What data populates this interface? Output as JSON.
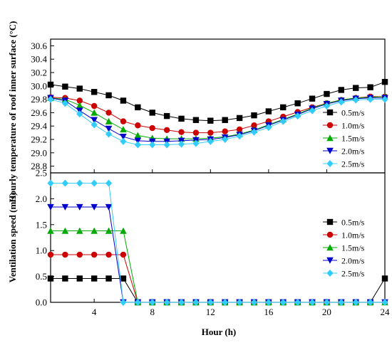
{
  "chart_data": [
    {
      "type": "line",
      "ylabel": "Hourly temperature of roof inner surface (°C)",
      "xlim": [
        1,
        24
      ],
      "ylim": [
        28.7,
        30.7
      ],
      "x_ticks": [
        4,
        8,
        12,
        16,
        20,
        24
      ],
      "y_ticks": [
        "28.8",
        "29.0",
        "29.2",
        "29.4",
        "29.6",
        "29.8",
        "30.0",
        "30.2",
        "30.4",
        "30.6"
      ],
      "legend_position": "right",
      "x": [
        1,
        2,
        3,
        4,
        5,
        6,
        7,
        8,
        9,
        10,
        11,
        12,
        13,
        14,
        15,
        16,
        17,
        18,
        19,
        20,
        21,
        22,
        23,
        24
      ],
      "series": [
        {
          "name": "0.5m/s",
          "color": "#000000",
          "marker": "square",
          "values": [
            30.02,
            29.99,
            29.96,
            29.91,
            29.86,
            29.78,
            29.68,
            29.6,
            29.55,
            29.51,
            29.49,
            29.48,
            29.49,
            29.52,
            29.56,
            29.62,
            29.68,
            29.74,
            29.81,
            29.88,
            29.94,
            29.97,
            29.98,
            30.06
          ]
        },
        {
          "name": "1.0m/s",
          "color": "#cc0000",
          "marker": "circle",
          "values": [
            29.83,
            29.82,
            29.78,
            29.7,
            29.6,
            29.47,
            29.41,
            29.37,
            29.34,
            29.31,
            29.3,
            29.3,
            29.32,
            29.35,
            29.41,
            29.47,
            29.54,
            29.61,
            29.68,
            29.74,
            29.79,
            29.82,
            29.84,
            29.84
          ]
        },
        {
          "name": "1.5m/s",
          "color": "#00aa00",
          "marker": "triangle-up",
          "values": [
            29.82,
            29.8,
            29.71,
            29.6,
            29.47,
            29.35,
            29.26,
            29.22,
            29.21,
            29.21,
            29.21,
            29.22,
            29.24,
            29.28,
            29.34,
            29.42,
            29.5,
            29.58,
            29.67,
            29.74,
            29.79,
            29.82,
            29.83,
            29.84
          ]
        },
        {
          "name": "2.0m/s",
          "color": "#0000cc",
          "marker": "triangle-down",
          "values": [
            29.82,
            29.78,
            29.63,
            29.49,
            29.36,
            29.24,
            29.18,
            29.17,
            29.17,
            29.18,
            29.19,
            29.2,
            29.23,
            29.27,
            29.33,
            29.41,
            29.49,
            29.57,
            29.66,
            29.73,
            29.78,
            29.81,
            29.82,
            29.82
          ]
        },
        {
          "name": "2.5m/s",
          "color": "#33ccff",
          "marker": "diamond",
          "values": [
            29.8,
            29.74,
            29.58,
            29.42,
            29.28,
            29.17,
            29.12,
            29.12,
            29.12,
            29.13,
            29.14,
            29.17,
            29.2,
            29.25,
            29.31,
            29.38,
            29.47,
            29.55,
            29.63,
            29.7,
            29.76,
            29.79,
            29.8,
            29.8
          ]
        }
      ]
    },
    {
      "type": "line",
      "xlabel": "Hour (h)",
      "ylabel": "Ventilation speed (m/s)",
      "xlim": [
        1,
        24
      ],
      "ylim": [
        0,
        2.5
      ],
      "x_ticks": [
        4,
        8,
        12,
        16,
        20,
        24
      ],
      "y_ticks": [
        "0.0",
        "0.5",
        "1.0",
        "1.5",
        "2.0",
        "2.5"
      ],
      "legend_position": "right",
      "x": [
        1,
        2,
        3,
        4,
        5,
        6,
        7,
        8,
        9,
        10,
        11,
        12,
        13,
        14,
        15,
        16,
        17,
        18,
        19,
        20,
        21,
        22,
        23,
        24
      ],
      "series": [
        {
          "name": "0.5m/s",
          "color": "#000000",
          "marker": "square",
          "values": [
            0.46,
            0.46,
            0.46,
            0.46,
            0.46,
            0.46,
            0,
            0,
            0,
            0,
            0,
            0,
            0,
            0,
            0,
            0,
            0,
            0,
            0,
            0,
            0,
            0,
            0,
            0.46
          ]
        },
        {
          "name": "1.0m/s",
          "color": "#cc0000",
          "marker": "circle",
          "values": [
            0.92,
            0.92,
            0.92,
            0.92,
            0.92,
            0.92,
            0,
            0,
            0,
            0,
            0,
            0,
            0,
            0,
            0,
            0,
            0,
            0,
            0,
            0,
            0,
            0,
            0,
            0
          ]
        },
        {
          "name": "1.5m/s",
          "color": "#00aa00",
          "marker": "triangle-up",
          "values": [
            1.38,
            1.38,
            1.38,
            1.38,
            1.38,
            1.38,
            0,
            0,
            0,
            0,
            0,
            0,
            0,
            0,
            0,
            0,
            0,
            0,
            0,
            0,
            0,
            0,
            0,
            0
          ]
        },
        {
          "name": "2.0m/s",
          "color": "#0000cc",
          "marker": "triangle-down",
          "values": [
            1.84,
            1.84,
            1.84,
            1.84,
            1.84,
            0,
            0,
            0,
            0,
            0,
            0,
            0,
            0,
            0,
            0,
            0,
            0,
            0,
            0,
            0,
            0,
            0,
            0,
            0
          ]
        },
        {
          "name": "2.5m/s",
          "color": "#33ccff",
          "marker": "diamond",
          "values": [
            2.3,
            2.3,
            2.3,
            2.3,
            2.3,
            0,
            0,
            0,
            0,
            0,
            0,
            0,
            0,
            0,
            0,
            0,
            0,
            0,
            0,
            0,
            0,
            0,
            0,
            0
          ]
        }
      ]
    }
  ]
}
